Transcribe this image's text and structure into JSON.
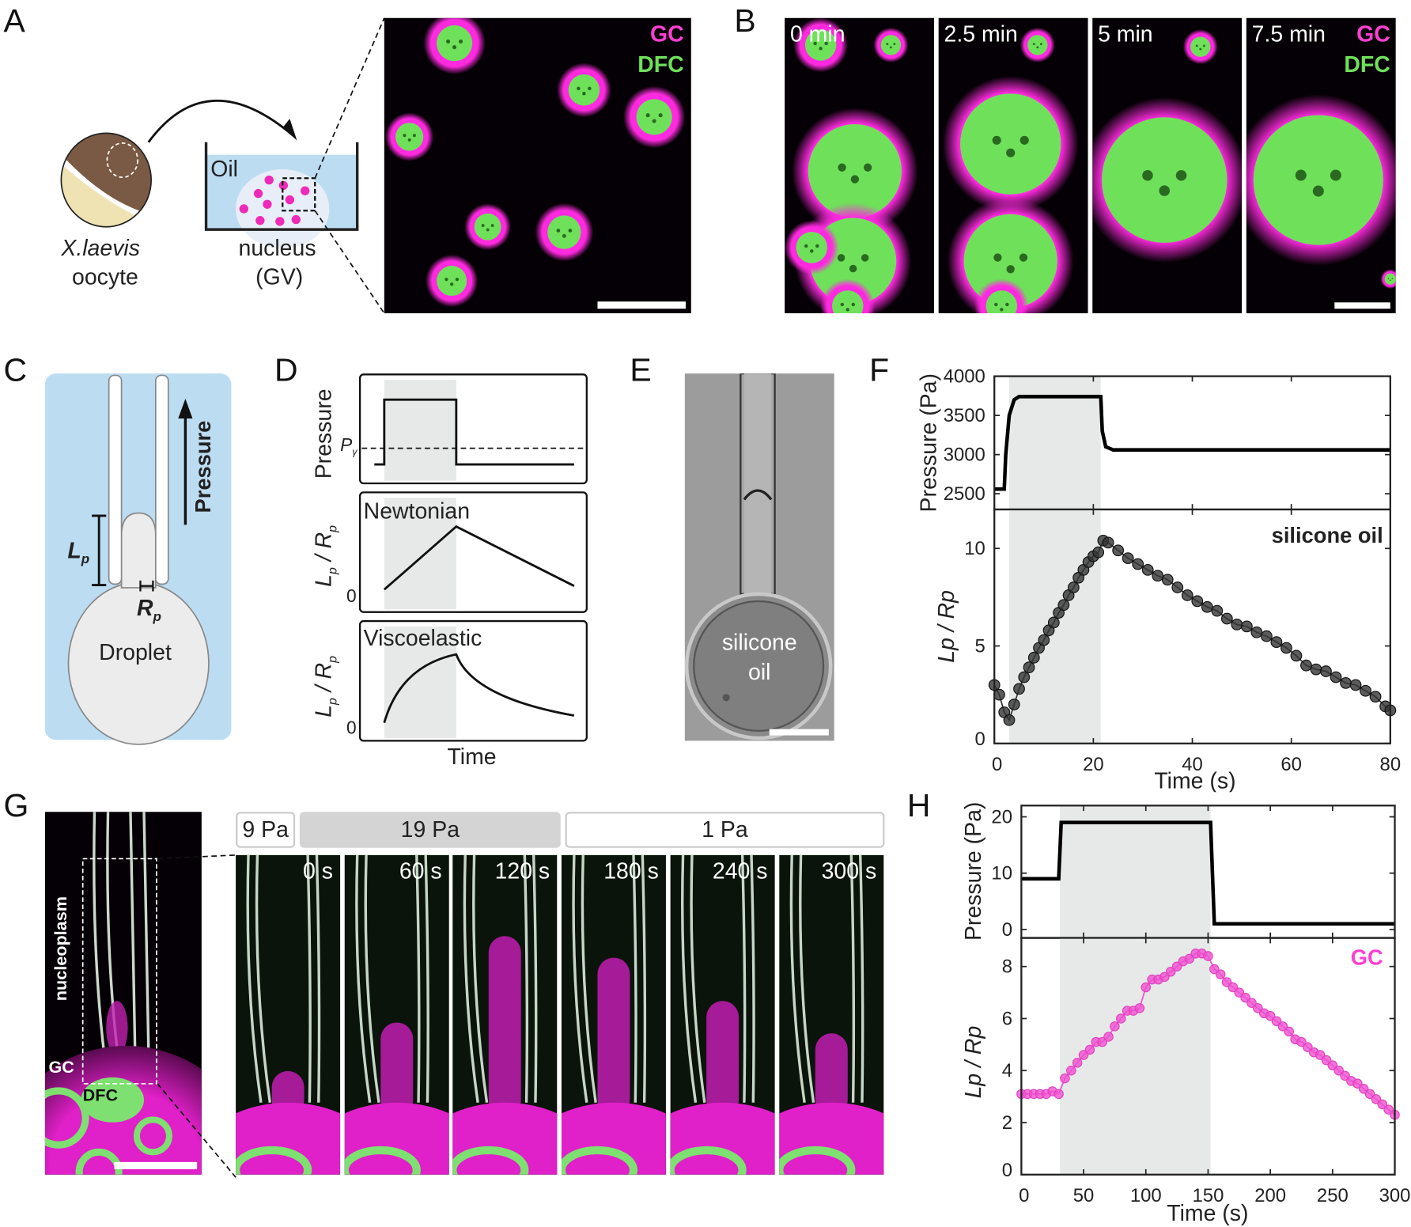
{
  "panels": {
    "A": "A",
    "B": "B",
    "C": "C",
    "D": "D",
    "E": "E",
    "F": "F",
    "G": "G",
    "H": "H"
  },
  "colors": {
    "gc": "#ff3fd2",
    "dfc": "#6fe05a",
    "medium_blue": "#bcdcf2",
    "shade": "#e7e9e8"
  },
  "panel_a": {
    "species": "X.laevis",
    "oocyte": "oocyte",
    "oil": "Oil",
    "nucleus": "nucleus",
    "gv": "(GV)",
    "gc_label": "GC",
    "dfc_label": "DFC"
  },
  "panel_b": {
    "frames": [
      "0 min",
      "2.5 min",
      "5 min",
      "7.5 min"
    ],
    "gc_label": "GC",
    "dfc_label": "DFC"
  },
  "panel_c": {
    "pressure": "Pressure",
    "lp": "L",
    "lp_sub": "p",
    "rp": "R",
    "rp_sub": "p",
    "droplet": "Droplet"
  },
  "panel_d": {
    "pressure_ylabel": "Pressure",
    "p_gamma": "P",
    "p_gamma_sub": "γ",
    "newtonian": "Newtonian",
    "viscoelastic": "Viscoelastic",
    "ylabel": "L",
    "ylabel_sub": "p",
    "ylabel_den": "R",
    "zero": "0",
    "xlabel": "Time"
  },
  "panel_e": {
    "label1": "silicone",
    "label2": "oil"
  },
  "panel_g": {
    "nucleoplasm": "nucleoplasm",
    "gc": "GC",
    "dfc": "DFC",
    "pressures": [
      "9 Pa",
      "19 Pa",
      "1 Pa"
    ],
    "frames": [
      "0 s",
      "60 s",
      "120 s",
      "180 s",
      "240 s",
      "300 s"
    ]
  },
  "chart_data": [
    {
      "id": "F-pressure",
      "type": "line",
      "ylabel": "Pressure (Pa)",
      "xlim": [
        0,
        80
      ],
      "ylim": [
        2300,
        4000
      ],
      "yticks": [
        2500,
        3000,
        3500,
        4000
      ],
      "xticks": [
        0,
        20,
        40,
        60,
        80
      ],
      "shaded_x": [
        3,
        21.5
      ],
      "x": [
        0,
        2,
        2.3,
        3,
        4,
        5,
        21.5,
        21.8,
        22.5,
        24,
        80
      ],
      "y": [
        2560,
        2560,
        3000,
        3500,
        3700,
        3740,
        3740,
        3300,
        3100,
        3060,
        3060
      ]
    },
    {
      "id": "F-deformation",
      "type": "scatter",
      "annotation": "silicone oil",
      "xlabel": "Time (s)",
      "ylabel": "Lp / Rp",
      "xlim": [
        0,
        80
      ],
      "ylim": [
        0,
        12
      ],
      "yticks": [
        0,
        5,
        10
      ],
      "xticks": [
        0,
        20,
        40,
        60,
        80
      ],
      "shaded_x": [
        3,
        21.5
      ],
      "color": "#333333",
      "x": [
        0,
        1,
        2,
        3,
        4,
        5,
        6,
        7,
        8,
        9,
        10,
        11,
        12,
        13,
        14,
        15,
        16,
        17,
        18,
        19,
        20,
        21,
        22,
        23,
        25,
        27,
        29,
        31,
        33,
        35,
        37,
        39,
        41,
        43,
        45,
        47,
        49,
        51,
        53,
        55,
        57,
        59,
        61,
        63,
        65,
        67,
        69,
        71,
        73,
        75,
        77,
        79,
        80
      ],
      "y": [
        3.0,
        2.5,
        1.6,
        1.2,
        2.0,
        2.8,
        3.4,
        3.9,
        4.4,
        4.9,
        5.3,
        5.8,
        6.2,
        6.7,
        7.1,
        7.6,
        8.0,
        8.5,
        8.9,
        9.3,
        9.6,
        9.8,
        10.4,
        10.3,
        9.9,
        9.5,
        9.2,
        8.9,
        8.6,
        8.4,
        8.0,
        7.6,
        7.3,
        7.0,
        6.8,
        6.4,
        6.1,
        6.0,
        5.7,
        5.5,
        5.2,
        4.9,
        4.5,
        4.0,
        3.8,
        3.7,
        3.4,
        3.1,
        3.0,
        2.7,
        2.4,
        1.9,
        1.7
      ]
    },
    {
      "id": "H-pressure",
      "type": "line",
      "ylabel": "Pressure (Pa)",
      "xlim": [
        0,
        300
      ],
      "ylim": [
        -1.5,
        22
      ],
      "yticks": [
        0,
        10,
        20
      ],
      "xticks": [
        0,
        50,
        100,
        150,
        200,
        250,
        300
      ],
      "shaded_x": [
        31,
        152
      ],
      "x": [
        0,
        30,
        32,
        152,
        155,
        300
      ],
      "y": [
        9,
        9,
        19,
        19,
        1,
        1
      ]
    },
    {
      "id": "H-deformation",
      "type": "scatter",
      "annotation": "GC",
      "xlabel": "Time (s)",
      "ylabel": "Lp / Rp",
      "xlim": [
        0,
        300
      ],
      "ylim": [
        0,
        9.1
      ],
      "yticks": [
        0,
        2,
        4,
        6,
        8
      ],
      "xticks": [
        0,
        50,
        100,
        150,
        200,
        250,
        300
      ],
      "shaded_x": [
        31,
        152
      ],
      "color": "#f050cf",
      "x": [
        0,
        5,
        10,
        15,
        20,
        25,
        30,
        35,
        40,
        45,
        50,
        55,
        60,
        65,
        70,
        75,
        80,
        85,
        90,
        95,
        100,
        105,
        110,
        115,
        120,
        125,
        130,
        135,
        140,
        145,
        150,
        155,
        160,
        165,
        170,
        175,
        180,
        185,
        190,
        195,
        200,
        205,
        210,
        215,
        220,
        225,
        230,
        235,
        240,
        245,
        250,
        255,
        260,
        265,
        270,
        275,
        280,
        285,
        290,
        295,
        300
      ],
      "y": [
        3.1,
        3.1,
        3.1,
        3.1,
        3.1,
        3.2,
        3.1,
        3.7,
        4.0,
        4.3,
        4.6,
        4.8,
        5.1,
        5.1,
        5.3,
        5.7,
        6.0,
        6.3,
        6.3,
        6.4,
        7.2,
        7.5,
        7.5,
        7.6,
        7.8,
        8.0,
        8.2,
        8.3,
        8.5,
        8.5,
        8.4,
        7.9,
        7.7,
        7.4,
        7.2,
        7.0,
        6.8,
        6.6,
        6.4,
        6.2,
        6.1,
        5.9,
        5.7,
        5.5,
        5.2,
        5.1,
        4.9,
        4.7,
        4.6,
        4.4,
        4.2,
        4.0,
        3.8,
        3.6,
        3.5,
        3.3,
        3.1,
        2.9,
        2.7,
        2.5,
        2.3
      ]
    }
  ]
}
